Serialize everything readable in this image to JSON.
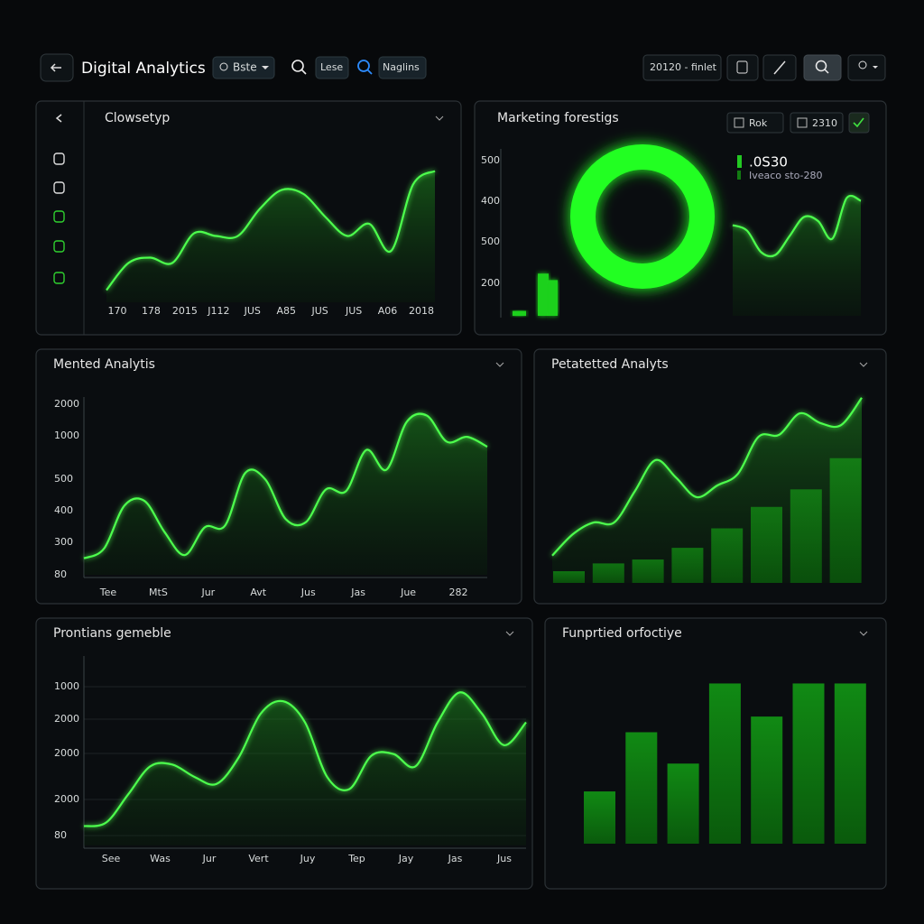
{
  "header": {
    "title": "Digital Analytics",
    "filters": [
      "Bste",
      "Lese",
      "Naglins"
    ],
    "date_range": "20120 - finlet"
  },
  "panels": [
    {
      "title": "Clowsetyp",
      "x_labels": [
        "170",
        "178",
        "2015",
        "J112",
        "JUS",
        "A85",
        "JUS",
        "JUS",
        "A06",
        "2018"
      ],
      "ylim": [
        0,
        100
      ],
      "values": [
        9,
        29,
        33,
        29,
        51,
        49,
        49,
        69,
        83,
        80,
        63,
        49,
        58,
        38,
        87,
        97
      ]
    },
    {
      "title": "Marketing forestigs",
      "buttons": [
        "Rok",
        "2310"
      ],
      "y_labels": [
        "500",
        "400",
        "500",
        "200"
      ],
      "legend": {
        "value": ".0S30",
        "label": "Iveaco sto-280"
      },
      "ylim": [
        0,
        100
      ],
      "bars": [
        3,
        26,
        22
      ],
      "values": [
        67,
        63,
        47,
        45,
        59,
        73,
        70,
        57,
        87,
        85
      ]
    },
    {
      "title": "Mented Analytis",
      "y_labels": [
        "2000",
        "1000",
        "500",
        "400",
        "300",
        "80"
      ],
      "x_labels": [
        "Tee",
        "MtS",
        "Jur",
        "Avt",
        "Jus",
        "Jas",
        "Jue",
        "282"
      ],
      "ylim": [
        0,
        100
      ],
      "values": [
        10,
        16,
        42,
        45,
        26,
        12,
        29,
        30,
        62,
        58,
        34,
        32,
        52,
        51,
        76,
        64,
        93,
        97,
        81,
        84,
        78
      ]
    },
    {
      "title": "Petatetted Analyts",
      "ylim": [
        0,
        100
      ],
      "bars": [
        6,
        10,
        12,
        18,
        28,
        39,
        48,
        64
      ],
      "values": [
        14,
        25,
        31,
        31,
        47,
        63,
        54,
        44,
        50,
        56,
        75,
        76,
        87,
        82,
        81,
        95
      ]
    },
    {
      "title": "Prontians gemeble",
      "y_labels": [
        "1000",
        "2000",
        "2000",
        "2000",
        "80"
      ],
      "x_labels": [
        "See",
        "Was",
        "Jur",
        "Vert",
        "Juy",
        "Tep",
        "Jay",
        "Jas",
        "Jus"
      ],
      "ylim": [
        0,
        100
      ],
      "values": [
        11,
        13,
        29,
        45,
        46,
        39,
        35,
        50,
        75,
        82,
        70,
        39,
        32,
        51,
        52,
        45,
        70,
        87,
        75,
        57,
        70
      ]
    },
    {
      "title": "Funprtied orfoctiye",
      "ylim": [
        0,
        100
      ],
      "bars": [
        30,
        64,
        46,
        92,
        73,
        92,
        92
      ]
    }
  ]
}
